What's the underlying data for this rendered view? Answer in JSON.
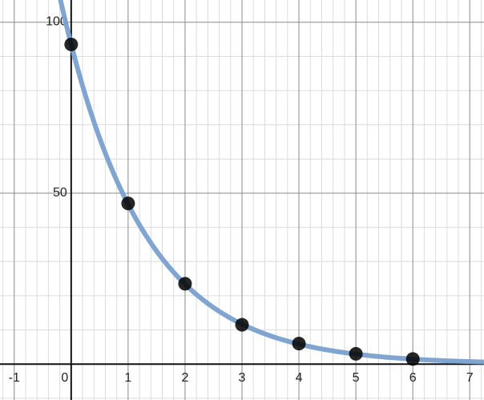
{
  "chart_data": {
    "type": "scatter",
    "title": "",
    "xlabel": "",
    "ylabel": "",
    "xlim": [
      -1.25,
      7.25
    ],
    "ylim": [
      -10.5,
      106.5
    ],
    "grid": true,
    "x_major_step": 1,
    "x_minor_step": 0.2,
    "y_major_step": 50,
    "y_minor_step": 10,
    "x_ticks": [
      "-1",
      "0",
      "1",
      "2",
      "3",
      "4",
      "5",
      "6",
      "7"
    ],
    "y_ticks": [
      "50",
      "100"
    ],
    "points": {
      "color": "#000000",
      "x": [
        0,
        1,
        2,
        3,
        4,
        5,
        6
      ],
      "y": [
        93.5,
        47,
        23.5,
        11.5,
        6,
        3,
        1.5
      ]
    },
    "curve": {
      "color": "#7aa0cf",
      "a": 93.5,
      "b": 0.5
    }
  }
}
